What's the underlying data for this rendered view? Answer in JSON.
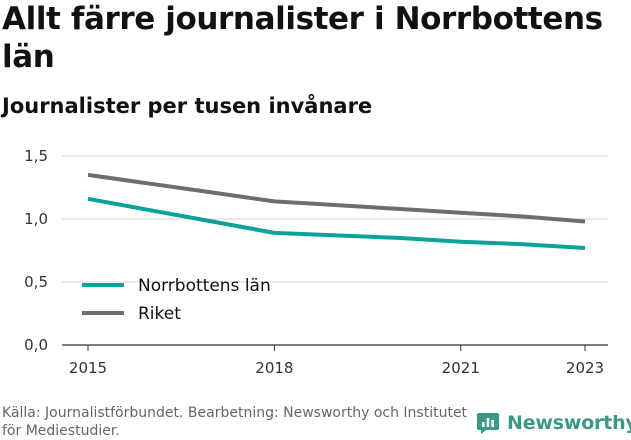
{
  "title": "Allt färre journalister i Norrbottens län",
  "subtitle": "Journalister per tusen invånare",
  "source": "Källa: Journalistförbundet. Bearbetning: Newsworthy och Institutet för Mediestudier.",
  "brand": {
    "name": "Newsworthy",
    "icon": "newsworthy-logo-icon",
    "color": "#3b9a86"
  },
  "chart_data": {
    "type": "line",
    "title": "Allt färre journalister i Norrbottens län",
    "subtitle": "Journalister per tusen invånare",
    "xlabel": "",
    "ylabel": "",
    "x": [
      2015,
      2016,
      2017,
      2018,
      2019,
      2020,
      2021,
      2022,
      2023
    ],
    "xticks": [
      "2015",
      "2018",
      "2021",
      "2023"
    ],
    "xlim": [
      2015,
      2023
    ],
    "yticks": [
      "0,0",
      "0,5",
      "1,0",
      "1,5"
    ],
    "ylim": [
      0,
      1.5
    ],
    "grid": true,
    "legend_position": "bottom-left",
    "series": [
      {
        "name": "Norrbottens län",
        "color": "#0aa39a",
        "values": [
          1.16,
          1.07,
          0.98,
          0.89,
          0.87,
          0.85,
          0.82,
          0.8,
          0.77
        ]
      },
      {
        "name": "Riket",
        "color": "#6e6d72",
        "values": [
          1.35,
          1.28,
          1.21,
          1.14,
          1.11,
          1.08,
          1.05,
          1.02,
          0.98
        ]
      }
    ]
  }
}
